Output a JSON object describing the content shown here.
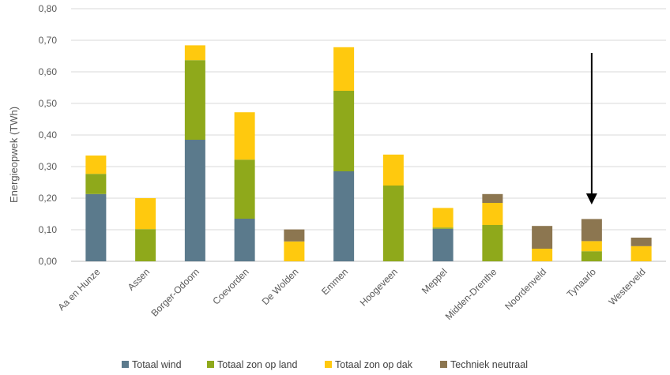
{
  "chart_data": {
    "type": "bar",
    "stacked": true,
    "title": "",
    "xlabel": "",
    "ylabel": "Energieopwek (TWh)",
    "ylim": [
      0,
      0.8
    ],
    "yticks": [
      "0,00",
      "0,10",
      "0,20",
      "0,30",
      "0,40",
      "0,50",
      "0,60",
      "0,70",
      "0,80"
    ],
    "grid": true,
    "legend_position": "bottom",
    "categories": [
      "Aa en Hunze",
      "Assen",
      "Borger-Odoorn",
      "Coevorden",
      "De Wolden",
      "Emmen",
      "Hoogeveen",
      "Meppel",
      "Midden-Drenthe",
      "Noordenveld",
      "Tynaarlo",
      "Westerveld"
    ],
    "series": [
      {
        "name": "Totaal wind",
        "color": "#5B7A8C",
        "values": [
          0.213,
          0,
          0.385,
          0.135,
          0,
          0.285,
          0,
          0.103,
          0,
          0,
          0,
          0
        ]
      },
      {
        "name": "Totaal zon op land",
        "color": "#8FA91B",
        "values": [
          0.064,
          0.102,
          0.252,
          0.187,
          0,
          0.255,
          0.24,
          0.004,
          0.115,
          0,
          0.032,
          0
        ]
      },
      {
        "name": "Totaal zon op dak",
        "color": "#FFC90E",
        "values": [
          0.058,
          0.098,
          0.047,
          0.15,
          0.063,
          0.138,
          0.098,
          0.062,
          0.07,
          0.04,
          0.032,
          0.048
        ]
      },
      {
        "name": "Techniek neutraal",
        "color": "#8C7650",
        "values": [
          0,
          0,
          0,
          0,
          0.038,
          0,
          0,
          0,
          0.028,
          0.072,
          0.07,
          0.027
        ]
      }
    ],
    "annotations": [
      {
        "type": "arrow",
        "category": "Tynaarlo",
        "from_y": 0.66,
        "to_y": 0.18,
        "color": "#000000"
      }
    ]
  }
}
